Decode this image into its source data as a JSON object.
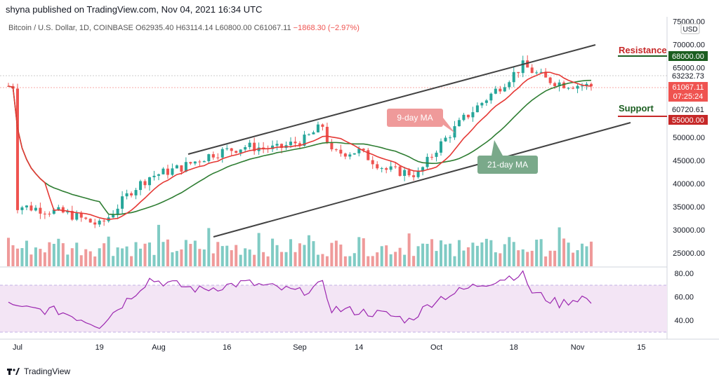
{
  "header": {
    "publisher": "shyna published on TradingView.com, Nov 04, 2021 16:34 UTC",
    "symbol": "Bitcoin / U.S. Dollar, 1D, COINBASE",
    "open": "O62935.40",
    "high": "H63114.14",
    "low": "L60800.00",
    "close": "C61067.11",
    "change": "−1868.30 (−2.97%)"
  },
  "currency_badge": "USD",
  "price_axis": {
    "ticks": [
      "75000.00",
      "70000.00",
      "65000.00",
      "50000.00",
      "45000.00",
      "40000.00",
      "35000.00",
      "30000.00",
      "25000.00"
    ],
    "badges": {
      "resistance_level": "68000.00",
      "high_level": "63232.73",
      "current_price": "61067.11",
      "countdown": "07:25:24",
      "low_level": "60720.61",
      "support_level": "55000.00"
    }
  },
  "annotations": {
    "resistance": "Resistance",
    "support": "Support",
    "ma9": "9-day MA",
    "ma21": "21-day MA"
  },
  "rsi_axis": {
    "ticks": [
      "80.00",
      "60.00",
      "40.00"
    ]
  },
  "time_axis": {
    "ticks": [
      "Jul",
      "19",
      "Aug",
      "16",
      "Sep",
      "14",
      "Oct",
      "18",
      "Nov",
      "15"
    ]
  },
  "footer": {
    "brand": "TradingView"
  },
  "colors": {
    "up": "#26a69a",
    "down": "#ef5350",
    "ma9": "#e53935",
    "ma21": "#2e7d32",
    "rsi": "#9c27b0",
    "rsi_band": "#f3e5f5",
    "resistance": "#1b5e20",
    "support": "#c62828"
  },
  "chart_data": {
    "type": "candlestick",
    "title": "Bitcoin / U.S. Dollar, 1D, COINBASE",
    "ylim": [
      22000,
      76000
    ],
    "price_points": [
      {
        "x": "Jul 01",
        "y": 35200
      },
      {
        "x": "Jul 06",
        "y": 34500
      },
      {
        "x": "Jul 12",
        "y": 33500
      },
      {
        "x": "Jul 19",
        "y": 31000
      },
      {
        "x": "Jul 21",
        "y": 32800
      },
      {
        "x": "Jul 26",
        "y": 38500
      },
      {
        "x": "Jul 30",
        "y": 41500
      },
      {
        "x": "Aug 06",
        "y": 43500
      },
      {
        "x": "Aug 13",
        "y": 46500
      },
      {
        "x": "Aug 20",
        "y": 48000
      },
      {
        "x": "Aug 27",
        "y": 47500
      },
      {
        "x": "Sep 02",
        "y": 49500
      },
      {
        "x": "Sep 06",
        "y": 52500
      },
      {
        "x": "Sep 08",
        "y": 46500
      },
      {
        "x": "Sep 14",
        "y": 47000
      },
      {
        "x": "Sep 20",
        "y": 43000
      },
      {
        "x": "Sep 27",
        "y": 42000
      },
      {
        "x": "Oct 01",
        "y": 47500
      },
      {
        "x": "Oct 07",
        "y": 54000
      },
      {
        "x": "Oct 15",
        "y": 61000
      },
      {
        "x": "Oct 20",
        "y": 65500
      },
      {
        "x": "Oct 25",
        "y": 62500
      },
      {
        "x": "Oct 29",
        "y": 61500
      },
      {
        "x": "Nov 04",
        "y": 61067
      }
    ],
    "rsi_ylim": [
      30,
      82
    ],
    "rsi_points": [
      {
        "x": "Jul 01",
        "y": 50
      },
      {
        "x": "Jul 10",
        "y": 48
      },
      {
        "x": "Jul 19",
        "y": 36
      },
      {
        "x": "Jul 30",
        "y": 75
      },
      {
        "x": "Aug 10",
        "y": 66
      },
      {
        "x": "Aug 20",
        "y": 72
      },
      {
        "x": "Sep 01",
        "y": 64
      },
      {
        "x": "Sep 06",
        "y": 70
      },
      {
        "x": "Sep 08",
        "y": 50
      },
      {
        "x": "Sep 20",
        "y": 45
      },
      {
        "x": "Sep 25",
        "y": 40
      },
      {
        "x": "Oct 01",
        "y": 58
      },
      {
        "x": "Oct 10",
        "y": 70
      },
      {
        "x": "Oct 20",
        "y": 80
      },
      {
        "x": "Oct 22",
        "y": 64
      },
      {
        "x": "Oct 28",
        "y": 54
      },
      {
        "x": "Nov 02",
        "y": 60
      },
      {
        "x": "Nov 04",
        "y": 55
      }
    ]
  }
}
